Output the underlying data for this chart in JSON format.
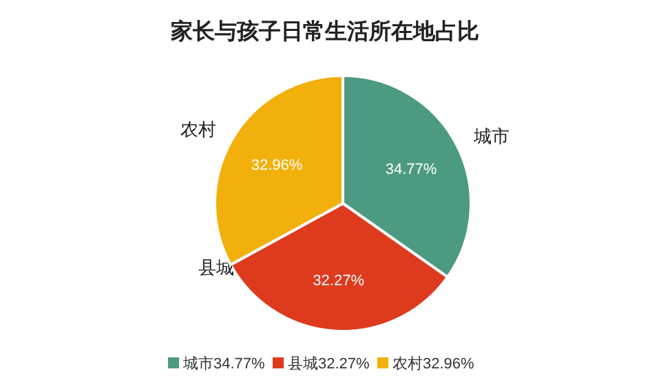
{
  "chart_data": {
    "type": "pie",
    "title": "家长与孩子日常生活所在地占比",
    "categories": [
      "城市",
      "县城",
      "农村"
    ],
    "values": [
      34.77,
      32.27,
      32.96
    ],
    "colors": [
      "#4d9a82",
      "#de3b1e",
      "#f2b00c"
    ],
    "value_labels": [
      "34.77%",
      "32.27%",
      "32.96%"
    ],
    "legend": "bottom"
  }
}
